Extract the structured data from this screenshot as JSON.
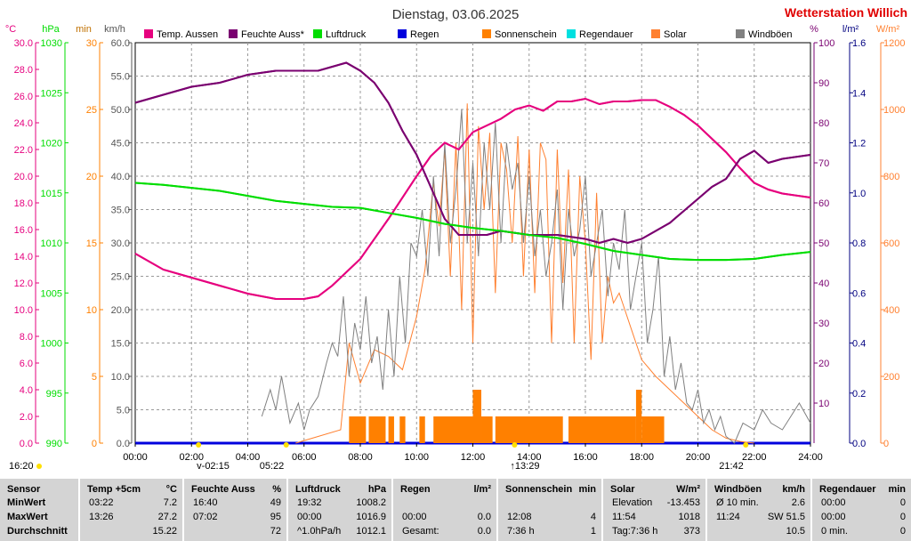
{
  "title": "Dienstag, 03.06.2025",
  "station": "Wetterstation Willich",
  "units": {
    "temp": "°C",
    "pressure": "hPa",
    "min": "min",
    "kmh": "km/h",
    "pct": "%",
    "lm2": "l/m²",
    "wm2": "W/m²"
  },
  "legend": [
    {
      "label": "Temp. Aussen",
      "color": "#e6007e"
    },
    {
      "label": "Feuchte Auss*",
      "color": "#7a0070"
    },
    {
      "label": "Luftdruck",
      "color": "#00dd00"
    },
    {
      "label": "Regen",
      "color": "#0000dd"
    },
    {
      "label": "Sonnenschein",
      "color": "#ff8000"
    },
    {
      "label": "Regendauer",
      "color": "#00e0e0"
    },
    {
      "label": "Solar",
      "color": "#ff8030"
    },
    {
      "label": "Windböen",
      "color": "#808080"
    }
  ],
  "chart_data": {
    "type": "line",
    "xlim": [
      0,
      24
    ],
    "x_ticks": [
      "00:00",
      "02:00",
      "04:00",
      "06:00",
      "08:00",
      "10:00",
      "12:00",
      "14:00",
      "16:00",
      "18:00",
      "20:00",
      "22:00",
      "24:00"
    ],
    "axes": {
      "temp": {
        "ticks": [
          "0.0",
          "2.0",
          "4.0",
          "6.0",
          "8.0",
          "10.0",
          "12.0",
          "14.0",
          "16.0",
          "18.0",
          "20.0",
          "22.0",
          "24.0",
          "26.0",
          "28.0",
          "30.0"
        ],
        "range": [
          0,
          30
        ],
        "color": "#e6007e"
      },
      "pressure": {
        "ticks": [
          "990",
          "995",
          "1000",
          "1005",
          "1010",
          "1015",
          "1020",
          "1025",
          "1030"
        ],
        "range": [
          990,
          1030
        ],
        "color": "#00dd00"
      },
      "minutes": {
        "ticks": [
          "0",
          "5",
          "10",
          "15",
          "20",
          "25",
          "30"
        ],
        "range": [
          0,
          30
        ],
        "color": "#ff8000"
      },
      "kmh": {
        "ticks": [
          "0.0",
          "5.0",
          "10.0",
          "15.0",
          "20.0",
          "25.0",
          "30.0",
          "35.0",
          "40.0",
          "45.0",
          "50.0",
          "55.0",
          "60.0"
        ],
        "range": [
          0,
          60
        ],
        "color": "#555555"
      },
      "pct": {
        "ticks": [
          "10",
          "20",
          "30",
          "40",
          "50",
          "60",
          "70",
          "80",
          "90",
          "100"
        ],
        "range": [
          0,
          100
        ],
        "color": "#7a0070"
      },
      "lm2": {
        "ticks": [
          "0.0",
          "0.2",
          "0.4",
          "0.6",
          "0.8",
          "1.0",
          "1.2",
          "1.4",
          "1.6"
        ],
        "range": [
          0,
          1.6
        ],
        "color": "#000080"
      },
      "wm2": {
        "ticks": [
          "0",
          "200",
          "400",
          "600",
          "800",
          "1000",
          "1200"
        ],
        "range": [
          0,
          1200
        ],
        "color": "#ff8030"
      }
    },
    "series": [
      {
        "name": "Temp. Aussen",
        "axis": "temp",
        "x": [
          0,
          1,
          2,
          3,
          4,
          5,
          6,
          6.5,
          7,
          8,
          9,
          10,
          10.5,
          11,
          11.5,
          12,
          12.5,
          13,
          13.5,
          14,
          14.5,
          15,
          15.5,
          16,
          16.5,
          17,
          17.5,
          18,
          18.5,
          19,
          19.5,
          20,
          20.5,
          21,
          21.5,
          22,
          22.5,
          23,
          24
        ],
        "y": [
          14.2,
          13.0,
          12.4,
          11.8,
          11.2,
          10.8,
          10.8,
          11.0,
          11.8,
          13.8,
          16.8,
          20.0,
          21.5,
          22.5,
          22.0,
          23.3,
          23.8,
          24.3,
          25.0,
          25.3,
          24.9,
          25.6,
          25.6,
          25.8,
          25.4,
          25.6,
          25.6,
          25.7,
          25.7,
          25.2,
          24.6,
          23.8,
          22.8,
          21.8,
          20.6,
          19.5,
          19.0,
          18.7,
          18.4
        ]
      },
      {
        "name": "Feuchte Auss*",
        "axis": "pct",
        "x": [
          0,
          1,
          2,
          3,
          4,
          5,
          6,
          6.5,
          7,
          7.5,
          8,
          8.5,
          9,
          9.5,
          10,
          10.5,
          11,
          11.5,
          12,
          12.5,
          13,
          14,
          15,
          16,
          16.5,
          17,
          17.5,
          18,
          18.5,
          19,
          19.5,
          20,
          20.5,
          21,
          21.5,
          22,
          22.5,
          23,
          24
        ],
        "y": [
          85,
          87,
          89,
          90,
          92,
          93,
          93,
          93,
          94,
          95,
          93,
          90,
          85,
          78,
          72,
          64,
          56,
          52,
          52,
          52,
          53,
          52,
          52,
          51,
          50,
          51,
          50,
          51,
          53,
          55,
          58,
          61,
          64,
          66,
          71,
          73,
          70,
          71,
          72
        ]
      },
      {
        "name": "Luftdruck",
        "axis": "pressure",
        "x": [
          0,
          1,
          2,
          3,
          4,
          5,
          6,
          7,
          8,
          9,
          10,
          11,
          12,
          13,
          14,
          15,
          16,
          17,
          18,
          19,
          20,
          21,
          22,
          23,
          24
        ],
        "y": [
          1016.0,
          1015.8,
          1015.5,
          1015.2,
          1014.7,
          1014.2,
          1013.9,
          1013.6,
          1013.5,
          1013.0,
          1012.5,
          1011.9,
          1011.5,
          1011.2,
          1010.8,
          1010.5,
          1009.9,
          1009.2,
          1008.8,
          1008.4,
          1008.3,
          1008.3,
          1008.4,
          1008.8,
          1009.1
        ]
      },
      {
        "name": "Regen",
        "axis": "lm2",
        "x": [
          0,
          24
        ],
        "y": [
          0.0,
          0.0
        ]
      },
      {
        "name": "Sonnenschein",
        "axis": "minutes",
        "bars": [
          [
            7.6,
            8.2,
            2
          ],
          [
            8.3,
            8.9,
            2
          ],
          [
            9.0,
            9.2,
            2
          ],
          [
            9.4,
            9.6,
            2
          ],
          [
            10.1,
            10.3,
            2
          ],
          [
            10.6,
            12.0,
            2
          ],
          [
            12.0,
            12.3,
            4
          ],
          [
            12.3,
            12.7,
            2
          ],
          [
            12.8,
            15.2,
            2
          ],
          [
            15.4,
            17.8,
            2
          ],
          [
            17.8,
            18.0,
            4
          ],
          [
            18.0,
            18.8,
            2
          ]
        ]
      },
      {
        "name": "Solar",
        "axis": "wm2",
        "x": [
          5.7,
          6.5,
          7.3,
          7.6,
          8,
          8.5,
          9,
          9.5,
          10,
          10.3,
          10.6,
          10.8,
          11,
          11.2,
          11.4,
          11.6,
          11.8,
          12,
          12.2,
          12.4,
          12.6,
          12.8,
          13,
          13.2,
          13.4,
          13.6,
          13.8,
          14,
          14.2,
          14.4,
          14.6,
          14.8,
          15,
          15.2,
          15.4,
          15.6,
          15.8,
          16,
          16.2,
          16.4,
          16.6,
          16.8,
          17,
          17.2,
          17.4,
          17.6,
          17.8,
          18,
          18.5,
          19,
          19.5,
          20,
          20.5,
          21,
          21.5,
          22
        ],
        "y": [
          0,
          20,
          40,
          300,
          180,
          280,
          260,
          220,
          380,
          520,
          780,
          650,
          880,
          500,
          900,
          400,
          1018,
          300,
          950,
          700,
          930,
          450,
          900,
          820,
          600,
          920,
          500,
          880,
          450,
          900,
          850,
          300,
          880,
          480,
          820,
          300,
          800,
          600,
          250,
          750,
          300,
          500,
          420,
          450,
          400,
          350,
          300,
          250,
          200,
          160,
          120,
          80,
          40,
          15,
          5,
          0
        ]
      },
      {
        "name": "Windböen",
        "axis": "kmh",
        "x": [
          4.5,
          4.8,
          5,
          5.2,
          5.5,
          5.8,
          6,
          6.2,
          6.5,
          6.8,
          7,
          7.2,
          7.4,
          7.6,
          7.8,
          8,
          8.2,
          8.4,
          8.6,
          8.8,
          9,
          9.2,
          9.4,
          9.6,
          9.8,
          10,
          10.2,
          10.4,
          10.6,
          10.8,
          11,
          11.2,
          11.4,
          11.6,
          11.8,
          12,
          12.2,
          12.4,
          12.6,
          12.8,
          13,
          13.2,
          13.4,
          13.6,
          13.8,
          14,
          14.2,
          14.4,
          14.6,
          14.8,
          15,
          15.2,
          15.4,
          15.6,
          15.8,
          16,
          16.2,
          16.4,
          16.6,
          16.8,
          17,
          17.2,
          17.4,
          17.6,
          17.8,
          18,
          18.2,
          18.4,
          18.6,
          18.8,
          19,
          19.2,
          19.4,
          19.6,
          19.8,
          20,
          20.2,
          20.4,
          20.6,
          20.8,
          21,
          21.3,
          21.6,
          22,
          22.3,
          22.6,
          23,
          23.3,
          23.6,
          24
        ],
        "y": [
          4,
          8,
          5,
          10,
          3,
          6,
          2,
          5,
          7,
          12,
          15,
          13,
          22,
          10,
          18,
          14,
          22,
          12,
          16,
          8,
          20,
          10,
          25,
          15,
          30,
          28,
          35,
          25,
          40,
          28,
          45,
          30,
          38,
          50,
          30,
          42,
          28,
          45,
          35,
          48,
          30,
          45,
          38,
          42,
          30,
          40,
          28,
          35,
          25,
          30,
          38,
          20,
          35,
          28,
          32,
          40,
          25,
          30,
          35,
          22,
          30,
          26,
          35,
          20,
          25,
          30,
          15,
          20,
          28,
          10,
          16,
          8,
          12,
          6,
          5,
          8,
          3,
          5,
          2,
          4,
          1,
          0,
          3,
          2,
          5,
          3,
          2,
          4,
          6,
          3
        ]
      }
    ],
    "markers": {
      "sunrise": "05:22",
      "sunset": "21:42",
      "solar_noon": "13:29",
      "moonset": "02:15",
      "left_time": "16:20"
    }
  },
  "table": {
    "rowlabels": [
      "Sensor",
      "MinWert",
      "MaxWert",
      "Durchschnitt"
    ],
    "groups": [
      {
        "h1": "Temp +5cm",
        "h2": "°C",
        "r1": [
          "03:22",
          "7.2"
        ],
        "r2": [
          "13:26",
          "27.2"
        ],
        "r3": [
          "",
          "15.22"
        ]
      },
      {
        "h1": "Feuchte Auss",
        "h2": "%",
        "r1": [
          "16:40",
          "49"
        ],
        "r2": [
          "07:02",
          "95"
        ],
        "r3": [
          "",
          "72"
        ]
      },
      {
        "h1": "Luftdruck",
        "h2": "hPa",
        "r1": [
          "19:32",
          "1008.2"
        ],
        "r2": [
          "00:00",
          "1016.9"
        ],
        "r3": [
          "^1.0hPa/h",
          "1012.1"
        ]
      },
      {
        "h1": "Regen",
        "h2": "l/m²",
        "r1": [
          "",
          ""
        ],
        "r2": [
          "00:00",
          "0.0"
        ],
        "r3": [
          "Gesamt:",
          "0.0"
        ]
      },
      {
        "h1": "Sonnenschein",
        "h2": "min",
        "r1": [
          "",
          ""
        ],
        "r2": [
          "12:08",
          "4"
        ],
        "r3": [
          "7:36 h",
          "1"
        ]
      },
      {
        "h1": "Solar",
        "h2": "W/m²",
        "r1": [
          "Elevation",
          "-13.453"
        ],
        "r2": [
          "11:54",
          "1018"
        ],
        "r3": [
          "Tag:7:36 h",
          "373"
        ]
      },
      {
        "h1": "Windböen",
        "h2": "km/h",
        "r1": [
          "Ø 10 min.",
          "2.6"
        ],
        "r2": [
          "11:24",
          "SW 51.5"
        ],
        "r3": [
          "",
          "10.5"
        ]
      },
      {
        "h1": "Regendauer",
        "h2": "min",
        "r1": [
          "00:00",
          "0"
        ],
        "r2": [
          "00:00",
          "0"
        ],
        "r3": [
          "0 min.",
          "0"
        ]
      }
    ]
  }
}
